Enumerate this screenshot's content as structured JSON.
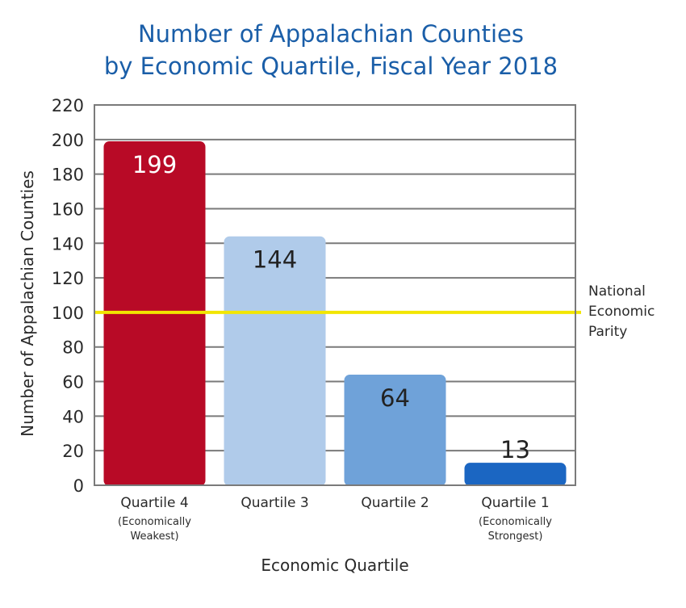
{
  "chart_data": {
    "type": "bar",
    "title_lines": [
      "Number of Appalachian Counties",
      "by Economic Quartile, Fiscal Year 2018"
    ],
    "xlabel": "Economic Quartile",
    "ylabel": "Number of Appalachian Counties",
    "ylim": [
      0,
      220
    ],
    "yticks": [
      0,
      20,
      40,
      60,
      80,
      100,
      120,
      140,
      160,
      180,
      200,
      220
    ],
    "grid": true,
    "categories": [
      {
        "label": "Quartile 4",
        "sublabel": [
          "(Economically",
          "Weakest)"
        ]
      },
      {
        "label": "Quartile 3",
        "sublabel": []
      },
      {
        "label": "Quartile 2",
        "sublabel": []
      },
      {
        "label": "Quartile 1",
        "sublabel": [
          "(Economically",
          "Strongest)"
        ]
      }
    ],
    "values": [
      199,
      144,
      64,
      13
    ],
    "data_labels": [
      "199",
      "144",
      "64",
      "13"
    ],
    "bar_colors": [
      "#b80a26",
      "#b0cbea",
      "#6fa2d9",
      "#1b66c2"
    ],
    "data_label_colors": [
      "#ffffff",
      "#222222",
      "#222222",
      "#222222"
    ],
    "reference_line": {
      "value": 100,
      "label_lines": [
        "National",
        "Economic",
        "Parity"
      ],
      "color": "#f2e600"
    },
    "colors": {
      "title": "#1a5ea8",
      "grid": "#7a7a7a",
      "text": "#2a2a2a"
    }
  }
}
